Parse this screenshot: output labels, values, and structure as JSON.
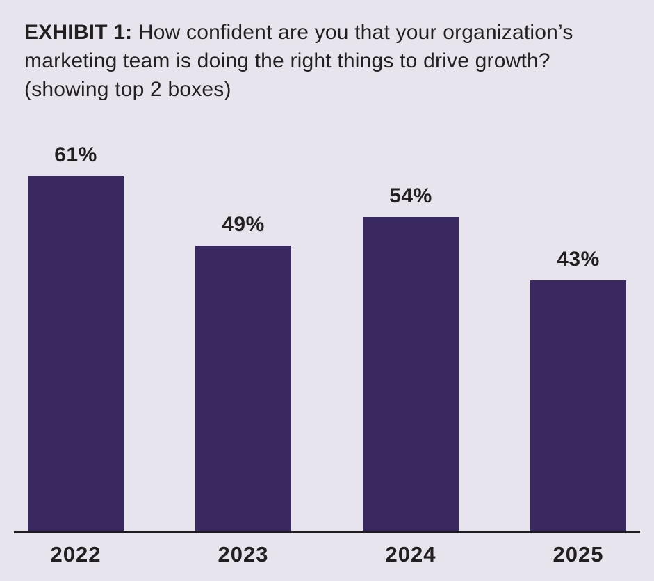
{
  "title": {
    "prefix": "EXHIBIT 1:",
    "text": " How confident are you that your organization’s marketing team is doing the right things to drive growth? (showing top 2 boxes)"
  },
  "chart_data": {
    "type": "bar",
    "title": "EXHIBIT 1: How confident are you that your organization’s marketing team is doing the right things to drive growth? (showing top 2 boxes)",
    "categories": [
      "2022",
      "2023",
      "2024",
      "2025"
    ],
    "values": [
      61,
      49,
      54,
      43
    ],
    "value_labels": [
      "61%",
      "49%",
      "54%",
      "43%"
    ],
    "xlabel": "",
    "ylabel": "",
    "ylim": [
      0,
      65
    ],
    "grid": false,
    "legend": "none",
    "bar_color": "#3a2960",
    "background_color": "#e8e4ee",
    "text_color": "#231f20",
    "axis_line_color": "#1d191d"
  }
}
